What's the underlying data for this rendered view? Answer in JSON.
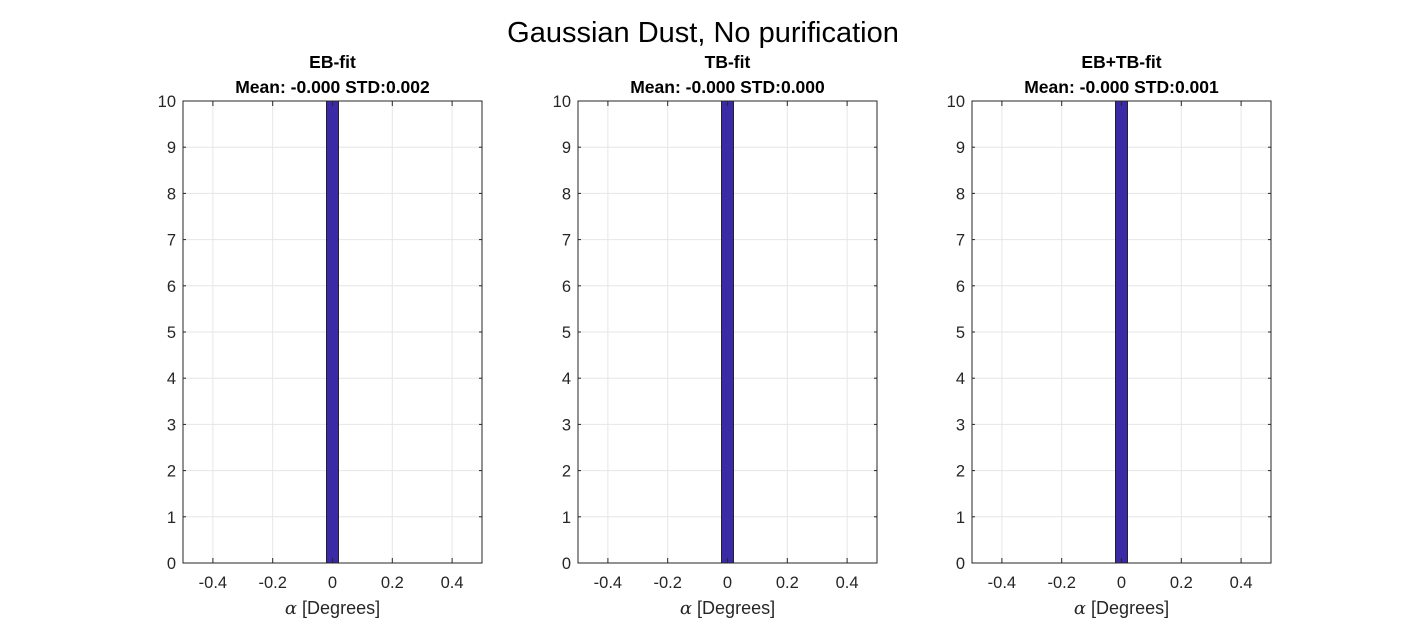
{
  "figure_title": "Gaussian Dust, No purification",
  "colors": {
    "bar": "#3A2AA6",
    "bar_edge": "#000000",
    "grid": "#E6E6E6",
    "axis": "#262626"
  },
  "chart_data": [
    {
      "type": "bar",
      "title_line1": "EB-fit",
      "title_line2": "Mean: -0.000 STD:0.002",
      "xlabel_symbol": "α",
      "xlabel_text": "[Degrees]",
      "ylabel": "",
      "xlim": [
        -0.5,
        0.5
      ],
      "ylim": [
        0,
        10
      ],
      "grid": true,
      "xticks": [
        -0.4,
        -0.2,
        0,
        0.2,
        0.4
      ],
      "xtick_labels": [
        "-0.4",
        "-0.2",
        "0",
        "0.2",
        "0.4"
      ],
      "yticks": [
        0,
        1,
        2,
        3,
        4,
        5,
        6,
        7,
        8,
        9,
        10
      ],
      "ytick_labels": [
        "0",
        "1",
        "2",
        "3",
        "4",
        "5",
        "6",
        "7",
        "8",
        "9",
        "10"
      ],
      "bins": [
        {
          "x0": -0.02,
          "x1": 0.02,
          "count": 10
        }
      ]
    },
    {
      "type": "bar",
      "title_line1": "TB-fit",
      "title_line2": "Mean: -0.000 STD:0.000",
      "xlabel_symbol": "α",
      "xlabel_text": "[Degrees]",
      "ylabel": "",
      "xlim": [
        -0.5,
        0.5
      ],
      "ylim": [
        0,
        10
      ],
      "grid": true,
      "xticks": [
        -0.4,
        -0.2,
        0,
        0.2,
        0.4
      ],
      "xtick_labels": [
        "-0.4",
        "-0.2",
        "0",
        "0.2",
        "0.4"
      ],
      "yticks": [
        0,
        1,
        2,
        3,
        4,
        5,
        6,
        7,
        8,
        9,
        10
      ],
      "ytick_labels": [
        "0",
        "1",
        "2",
        "3",
        "4",
        "5",
        "6",
        "7",
        "8",
        "9",
        "10"
      ],
      "bins": [
        {
          "x0": -0.02,
          "x1": 0.02,
          "count": 10
        }
      ]
    },
    {
      "type": "bar",
      "title_line1": "EB+TB-fit",
      "title_line2": "Mean: -0.000 STD:0.001",
      "xlabel_symbol": "α",
      "xlabel_text": "[Degrees]",
      "ylabel": "",
      "xlim": [
        -0.5,
        0.5
      ],
      "ylim": [
        0,
        10
      ],
      "grid": true,
      "xticks": [
        -0.4,
        -0.2,
        0,
        0.2,
        0.4
      ],
      "xtick_labels": [
        "-0.4",
        "-0.2",
        "0",
        "0.2",
        "0.4"
      ],
      "yticks": [
        0,
        1,
        2,
        3,
        4,
        5,
        6,
        7,
        8,
        9,
        10
      ],
      "ytick_labels": [
        "0",
        "1",
        "2",
        "3",
        "4",
        "5",
        "6",
        "7",
        "8",
        "9",
        "10"
      ],
      "bins": [
        {
          "x0": -0.02,
          "x1": 0.02,
          "count": 10
        }
      ]
    }
  ]
}
